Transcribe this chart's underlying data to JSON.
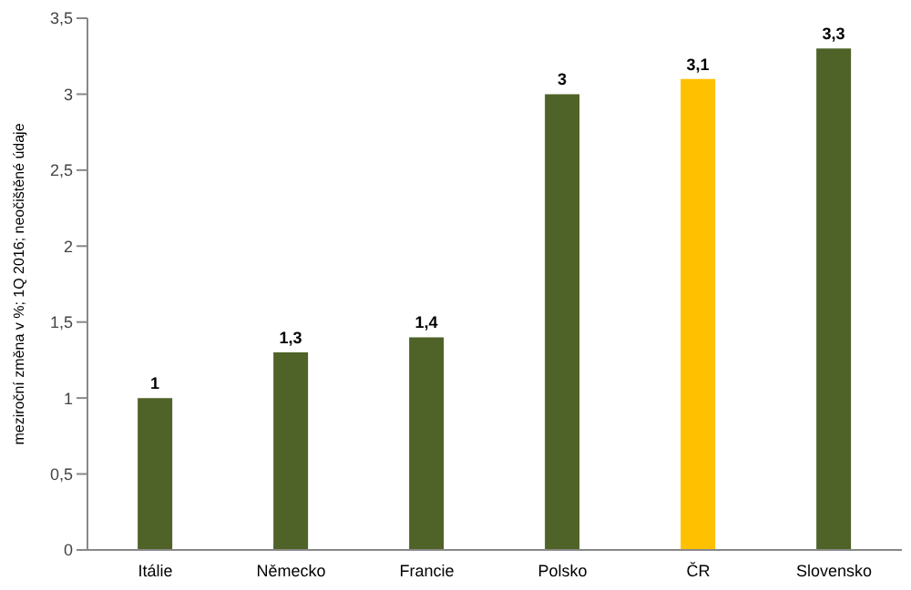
{
  "chart_data": {
    "type": "bar",
    "ylabel": "meziroční změna v %; 1Q 2016; neočištěné údaje",
    "categories": [
      "Itálie",
      "Německo",
      "Francie",
      "Polsko",
      "ČR",
      "Slovensko"
    ],
    "values": [
      1,
      1.3,
      1.4,
      3,
      3.1,
      3.3
    ],
    "colors": [
      "#4f6228",
      "#4f6228",
      "#4f6228",
      "#4f6228",
      "#ffc000",
      "#4f6228"
    ],
    "value_labels": [
      "1",
      "1,3",
      "1,4",
      "3",
      "3,1",
      "3,3"
    ],
    "ylim": [
      0,
      3.5
    ],
    "yticks": [
      0,
      {
        "value": 0.5,
        "label": "0,5"
      },
      1,
      {
        "value": 1.5,
        "label": "1,5"
      },
      2,
      {
        "value": 2.5,
        "label": "2,5"
      },
      3,
      {
        "value": 3.5,
        "label": "3,5"
      }
    ],
    "grid": false,
    "legend": false
  }
}
